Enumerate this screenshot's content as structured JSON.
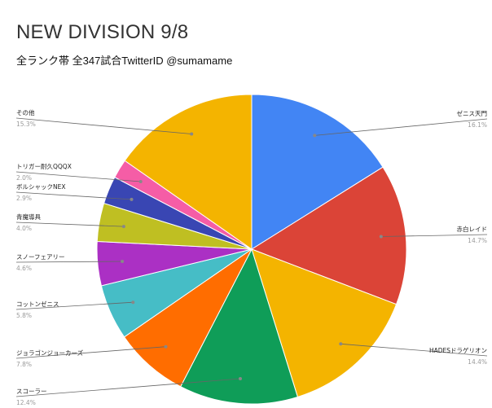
{
  "title": "NEW DIVISION 9/8",
  "subtitle": "全ランク帯 全347試合TwitterID @sumamame",
  "chart_data": {
    "type": "pie",
    "title": "NEW DIVISION 9/8",
    "subtitle": "全ランク帯 全347試合TwitterID @sumamame",
    "start_angle": "12 o'clock",
    "direction": "clockwise",
    "slices": [
      {
        "label": "ゼニス天門",
        "percent": "16.1%",
        "value": 16.1,
        "color": "#4285F4"
      },
      {
        "label": "赤白レイド",
        "percent": "14.7%",
        "value": 14.7,
        "color": "#DB4437"
      },
      {
        "label": "HADESドラゲリオン",
        "percent": "14.4%",
        "value": 14.4,
        "color": "#F4B400"
      },
      {
        "label": "スコーラー",
        "percent": "12.4%",
        "value": 12.4,
        "color": "#0F9D58"
      },
      {
        "label": "ジョラゴンジョーカーズ",
        "percent": "7.8%",
        "value": 7.8,
        "color": "#FF6D00"
      },
      {
        "label": "コットンゼニス",
        "percent": "5.8%",
        "value": 5.8,
        "color": "#46BDC6"
      },
      {
        "label": "スノーフェアリー",
        "percent": "4.6%",
        "value": 4.6,
        "color": "#AB30C4"
      },
      {
        "label": "青魔導具",
        "percent": "4.0%",
        "value": 4.0,
        "color": "#BFBF22"
      },
      {
        "label": "ボルシャックNEX",
        "percent": "2.9%",
        "value": 2.9,
        "color": "#3946B3"
      },
      {
        "label": "トリガー耐久QQQX",
        "percent": "2.0%",
        "value": 2.0,
        "color": "#F55DA6"
      },
      {
        "label": "その他",
        "percent": "15.3%",
        "value": 15.3,
        "color": "#F4B400"
      }
    ]
  }
}
